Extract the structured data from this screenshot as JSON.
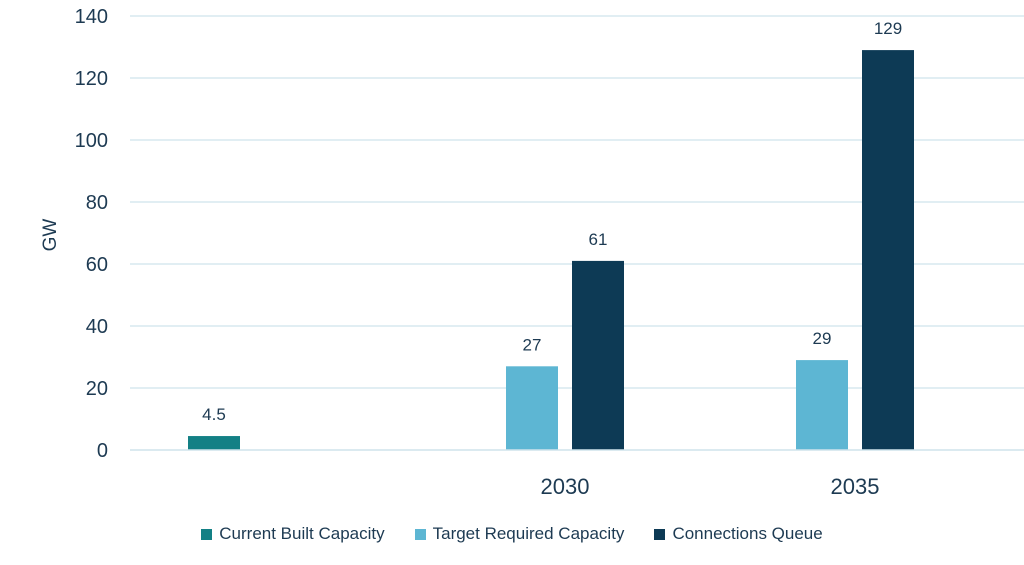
{
  "chart_data": {
    "type": "bar",
    "ylabel": "GW",
    "ylim": [
      0,
      140
    ],
    "yticks": [
      0,
      20,
      40,
      60,
      80,
      100,
      120,
      140
    ],
    "grid": true,
    "legend_position": "bottom",
    "categories": [
      "",
      "2030",
      "2035"
    ],
    "series": [
      {
        "name": "Current Built Capacity",
        "color": "#138085",
        "values": [
          4.5,
          null,
          null
        ],
        "labels": [
          "4.5",
          null,
          null
        ]
      },
      {
        "name": "Target Required Capacity",
        "color": "#5db6d3",
        "values": [
          null,
          27,
          29
        ],
        "labels": [
          null,
          "27",
          "29"
        ]
      },
      {
        "name": "Connections Queue",
        "color": "#0d3a55",
        "values": [
          null,
          61,
          129
        ],
        "labels": [
          null,
          "61",
          "129"
        ]
      }
    ]
  }
}
